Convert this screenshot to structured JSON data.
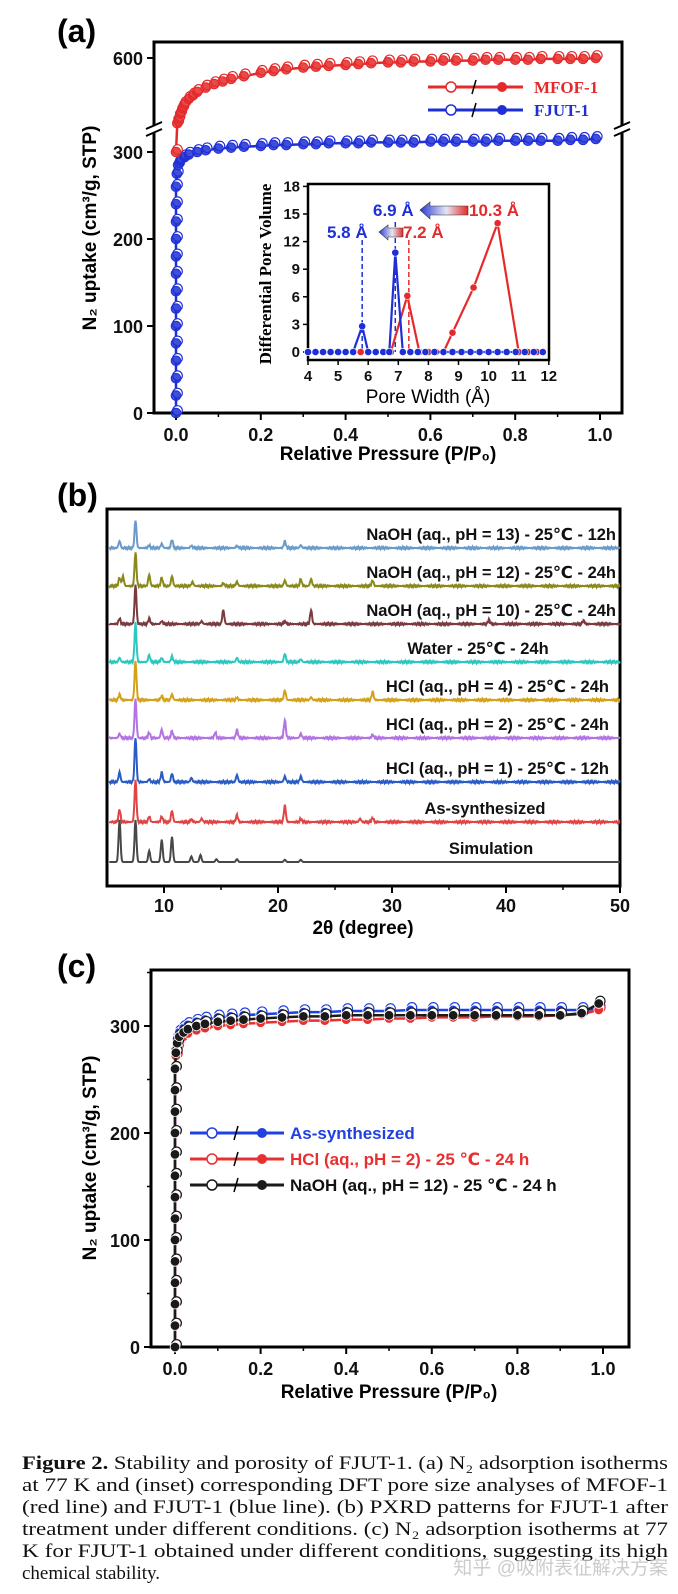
{
  "panel_labels": {
    "a": "(a)",
    "b": "(b)",
    "c": "(c)"
  },
  "chart_data": [
    {
      "id": "a-isotherm",
      "type": "scatter",
      "xlabel": "Relative Pressure (P/P₀)",
      "ylabel": "N₂ uptake (cm³/g, STP)",
      "xlim": [
        0,
        1
      ],
      "xticks": [
        "0.0",
        "0.2",
        "0.4",
        "0.6",
        "0.8",
        "1.0"
      ],
      "yticks": [
        "0",
        "100",
        "200",
        "300",
        "600"
      ],
      "axis_break": [
        320,
        520
      ],
      "legend_position": "top-right",
      "series": [
        {
          "name": "MFOF-1",
          "color": "#e42a2a",
          "x": [
            0,
            0.003,
            0.006,
            0.01,
            0.015,
            0.02,
            0.03,
            0.04,
            0.05,
            0.07,
            0.09,
            0.11,
            0.13,
            0.16,
            0.2,
            0.23,
            0.26,
            0.3,
            0.33,
            0.36,
            0.4,
            0.43,
            0.46,
            0.5,
            0.53,
            0.56,
            0.6,
            0.63,
            0.66,
            0.7,
            0.73,
            0.76,
            0.8,
            0.83,
            0.86,
            0.9,
            0.93,
            0.96,
            0.99
          ],
          "y": [
            300,
            525,
            530,
            536,
            542,
            547,
            553,
            557,
            561,
            566,
            570,
            573,
            576,
            579,
            583,
            585,
            587,
            589,
            590,
            591,
            592,
            593,
            594,
            595,
            595,
            596,
            596,
            597,
            597,
            597,
            598,
            598,
            598,
            598,
            599,
            599,
            599,
            599,
            600
          ]
        },
        {
          "name": "FJUT-1",
          "color": "#1f2fd6",
          "x": [
            0,
            0,
            0,
            0,
            0,
            0,
            0,
            0,
            0,
            0,
            0,
            0,
            0,
            0,
            0.002,
            0.005,
            0.01,
            0.02,
            0.03,
            0.05,
            0.07,
            0.1,
            0.13,
            0.16,
            0.2,
            0.23,
            0.26,
            0.3,
            0.33,
            0.36,
            0.4,
            0.43,
            0.46,
            0.5,
            0.53,
            0.56,
            0.6,
            0.63,
            0.66,
            0.7,
            0.73,
            0.76,
            0.8,
            0.83,
            0.86,
            0.9,
            0.93,
            0.96,
            0.99
          ],
          "y": [
            0,
            20,
            40,
            60,
            80,
            100,
            120,
            140,
            160,
            180,
            200,
            220,
            240,
            260,
            275,
            285,
            290,
            294,
            297,
            300,
            302,
            304,
            305,
            306,
            307,
            308,
            308,
            309,
            309,
            310,
            310,
            310,
            311,
            311,
            311,
            311,
            312,
            312,
            312,
            312,
            312,
            313,
            313,
            313,
            313,
            313,
            314,
            314,
            315
          ]
        }
      ]
    },
    {
      "id": "a-inset-psd",
      "type": "line",
      "xlabel": "Pore Width (Å)",
      "ylabel": "Differential Pore Volume",
      "xlim": [
        4,
        12
      ],
      "ylim": [
        0,
        18
      ],
      "xticks": [
        "4",
        "5",
        "6",
        "7",
        "8",
        "9",
        "10",
        "11",
        "12"
      ],
      "yticks": [
        "0",
        "3",
        "6",
        "9",
        "12",
        "15",
        "18"
      ],
      "annotations": [
        {
          "text": "6.9 Å",
          "color": "#1f2fd6"
        },
        {
          "text": "10.3 Å",
          "color": "#e42a2a"
        },
        {
          "text": "5.8 Å",
          "color": "#1f2fd6"
        },
        {
          "text": "7.2 Å",
          "color": "#e42a2a"
        }
      ],
      "series": [
        {
          "color": "#e42a2a",
          "x": [
            4,
            4.25,
            4.5,
            4.75,
            5,
            5.25,
            5.5,
            5.75,
            6,
            6.25,
            6.5,
            6.75,
            7.3,
            7.7,
            8,
            8.25,
            8.5,
            8.8,
            9.5,
            10.3,
            11,
            11.3,
            11.6
          ],
          "y": [
            0,
            0,
            0,
            0,
            0,
            0,
            0,
            0,
            0,
            0,
            0,
            0,
            6.1,
            0,
            0,
            0,
            0,
            2.1,
            7,
            14,
            0,
            0,
            0
          ]
        },
        {
          "color": "#1f2fd6",
          "x": [
            4,
            4.25,
            4.5,
            4.75,
            5,
            5.25,
            5.5,
            5.8,
            6.0,
            6.25,
            6.5,
            6.7,
            6.9,
            7.15,
            7.4,
            7.65,
            7.9,
            8.2,
            8.5,
            8.8,
            9.1,
            9.4,
            9.7,
            10,
            10.3,
            10.6,
            10.9,
            11.2,
            11.5,
            11.8
          ],
          "y": [
            0,
            0,
            0,
            0,
            0,
            0,
            0,
            2.8,
            0,
            0,
            0,
            0,
            10.8,
            0,
            0,
            0,
            0,
            0,
            0,
            0,
            0,
            0,
            0,
            0,
            0,
            0,
            0,
            0,
            0,
            0
          ]
        }
      ]
    },
    {
      "id": "b-pxrd",
      "type": "line",
      "xlabel": "2θ (degree)",
      "xlim": [
        5,
        50
      ],
      "xticks": [
        "10",
        "20",
        "30",
        "40",
        "50"
      ],
      "series": [
        {
          "name": "NaOH (aq., pH = 13) - 25℃ - 12h",
          "color": "#6a9bc9",
          "peaks": [
            [
              6.1,
              0.25
            ],
            [
              7.5,
              1
            ],
            [
              8.7,
              0.1
            ],
            [
              9.8,
              0.15
            ],
            [
              10.7,
              0.3
            ],
            [
              12.4,
              0.08
            ],
            [
              16.4,
              0.08
            ],
            [
              20.6,
              0.25
            ],
            [
              22,
              0.1
            ]
          ]
        },
        {
          "name": "NaOH (aq., pH = 12) - 25℃ - 24h",
          "color": "#8a8a1c",
          "peaks": [
            [
              6.1,
              0.3
            ],
            [
              6.4,
              0.35
            ],
            [
              7.5,
              1.2
            ],
            [
              8.7,
              0.4
            ],
            [
              9.8,
              0.3
            ],
            [
              10.7,
              0.35
            ],
            [
              12.5,
              0.15
            ],
            [
              15.2,
              0.1
            ],
            [
              16.4,
              0.15
            ],
            [
              20.6,
              0.2
            ],
            [
              22,
              0.25
            ],
            [
              22.9,
              0.25
            ],
            [
              28.3,
              0.2
            ]
          ]
        },
        {
          "name": "NaOH (aq., pH = 10) - 25℃ - 24h",
          "color": "#7a3a3e",
          "peaks": [
            [
              6.1,
              0.2
            ],
            [
              7.5,
              1.4
            ],
            [
              8.7,
              0.2
            ],
            [
              9.8,
              0.1
            ],
            [
              13.3,
              0.1
            ],
            [
              15.2,
              0.5
            ],
            [
              20.6,
              0.1
            ],
            [
              22.9,
              0.5
            ],
            [
              38.5,
              0.15
            ],
            [
              46.8,
              0.12
            ]
          ]
        },
        {
          "name": "Water - 25℃ - 24h",
          "color": "#2ec7c0",
          "peaks": [
            [
              6.1,
              0.15
            ],
            [
              7.5,
              1.4
            ],
            [
              8.7,
              0.25
            ],
            [
              9.8,
              0.15
            ],
            [
              10.7,
              0.2
            ],
            [
              16.4,
              0.15
            ],
            [
              20.6,
              0.3
            ],
            [
              22,
              0.1
            ]
          ]
        },
        {
          "name": "HCl (aq., pH = 4) - 25℃ - 24h",
          "color": "#d4a21a",
          "peaks": [
            [
              6.1,
              0.2
            ],
            [
              7.5,
              1.4
            ],
            [
              9.8,
              0.15
            ],
            [
              10.7,
              0.2
            ],
            [
              16.4,
              0.08
            ],
            [
              20.6,
              0.35
            ],
            [
              22.9,
              0.1
            ],
            [
              28.3,
              0.3
            ]
          ]
        },
        {
          "name": "HCl (aq., pH = 2) - 25℃ - 24h",
          "color": "#b374e2",
          "peaks": [
            [
              6.1,
              0.15
            ],
            [
              7.5,
              1.4
            ],
            [
              8.7,
              0.2
            ],
            [
              9.8,
              0.3
            ],
            [
              10.7,
              0.25
            ],
            [
              14.5,
              0.2
            ],
            [
              16.4,
              0.3
            ],
            [
              20.6,
              0.65
            ],
            [
              22,
              0.15
            ],
            [
              28.3,
              0.12
            ]
          ]
        },
        {
          "name": "HCl (aq., pH = 1) - 25℃ - 12h",
          "color": "#2a5cc6",
          "peaks": [
            [
              6.1,
              0.35
            ],
            [
              7.5,
              1.6
            ],
            [
              8.7,
              0.1
            ],
            [
              9.8,
              0.35
            ],
            [
              10.7,
              0.3
            ],
            [
              12.4,
              0.15
            ],
            [
              16.4,
              0.25
            ],
            [
              20.6,
              0.2
            ],
            [
              22,
              0.2
            ]
          ]
        },
        {
          "name": "As-synthesized",
          "color": "#e04545",
          "peaks": [
            [
              6.1,
              0.45
            ],
            [
              7.5,
              1.5
            ],
            [
              8.7,
              0.2
            ],
            [
              9.8,
              0.2
            ],
            [
              10.7,
              0.4
            ],
            [
              12.4,
              0.1
            ],
            [
              13.3,
              0.12
            ],
            [
              16.4,
              0.25
            ],
            [
              20.6,
              0.6
            ],
            [
              22,
              0.12
            ],
            [
              27.2,
              0.12
            ],
            [
              28.3,
              0.15
            ]
          ]
        },
        {
          "name": "Simulation",
          "color": "#484848",
          "peaks": [
            [
              6.1,
              1.5
            ],
            [
              7.5,
              1.5
            ],
            [
              8.7,
              0.4
            ],
            [
              9.8,
              0.8
            ],
            [
              10.7,
              0.9
            ],
            [
              12.4,
              0.2
            ],
            [
              13.2,
              0.25
            ],
            [
              14.6,
              0.1
            ],
            [
              16.4,
              0.1
            ],
            [
              20.6,
              0.08
            ],
            [
              22,
              0.08
            ]
          ]
        }
      ]
    },
    {
      "id": "c-isotherm",
      "type": "scatter",
      "xlabel": "Relative Pressure (P/P₀)",
      "ylabel": "N₂ uptake (cm³/g, STP)",
      "xlim": [
        0,
        1
      ],
      "ylim": [
        0,
        350
      ],
      "xticks": [
        "0.0",
        "0.2",
        "0.4",
        "0.6",
        "0.8",
        "1.0"
      ],
      "yticks": [
        "0",
        "100",
        "200",
        "300"
      ],
      "legend_position": "center-left",
      "series": [
        {
          "name": "As-synthesized",
          "color": "#2040e0",
          "x": [
            0,
            0,
            0,
            0,
            0,
            0,
            0,
            0,
            0,
            0,
            0,
            0,
            0,
            0,
            0.002,
            0.005,
            0.01,
            0.02,
            0.03,
            0.05,
            0.07,
            0.1,
            0.13,
            0.16,
            0.2,
            0.25,
            0.3,
            0.35,
            0.4,
            0.45,
            0.5,
            0.55,
            0.6,
            0.65,
            0.7,
            0.75,
            0.8,
            0.85,
            0.9,
            0.95,
            0.99
          ],
          "y": [
            0,
            20,
            40,
            60,
            80,
            100,
            120,
            140,
            160,
            180,
            200,
            220,
            240,
            260,
            278,
            288,
            294,
            298,
            301,
            304,
            306,
            308,
            309,
            310,
            311,
            312,
            313,
            313,
            314,
            314,
            314,
            315,
            315,
            315,
            315,
            315,
            315,
            315,
            315,
            315,
            316
          ]
        },
        {
          "name": "HCl (aq., pH = 2) - 25 ℃ - 24 h",
          "color": "#e83030",
          "x": [
            0,
            0,
            0,
            0,
            0,
            0,
            0,
            0,
            0,
            0,
            0,
            0,
            0,
            0,
            0.002,
            0.005,
            0.01,
            0.02,
            0.03,
            0.05,
            0.07,
            0.1,
            0.13,
            0.16,
            0.2,
            0.25,
            0.3,
            0.35,
            0.4,
            0.45,
            0.5,
            0.55,
            0.6,
            0.65,
            0.7,
            0.75,
            0.8,
            0.85,
            0.9,
            0.95,
            0.99
          ],
          "y": [
            0,
            20,
            40,
            60,
            80,
            100,
            120,
            140,
            160,
            180,
            200,
            220,
            240,
            260,
            272,
            280,
            286,
            290,
            293,
            296,
            298,
            300,
            301,
            302,
            303,
            304,
            305,
            305,
            306,
            306,
            307,
            307,
            308,
            308,
            308,
            309,
            309,
            309,
            310,
            311,
            315
          ]
        },
        {
          "name": "NaOH (aq., pH = 12) - 25 ℃ - 24 h",
          "color": "#1a1a1a",
          "x": [
            0,
            0,
            0,
            0,
            0,
            0,
            0,
            0,
            0,
            0,
            0,
            0,
            0,
            0,
            0.002,
            0.005,
            0.01,
            0.02,
            0.03,
            0.05,
            0.07,
            0.1,
            0.13,
            0.16,
            0.2,
            0.25,
            0.3,
            0.35,
            0.4,
            0.45,
            0.5,
            0.55,
            0.6,
            0.65,
            0.7,
            0.75,
            0.8,
            0.85,
            0.9,
            0.95,
            0.99
          ],
          "y": [
            0,
            20,
            40,
            60,
            80,
            100,
            120,
            140,
            160,
            180,
            200,
            220,
            240,
            260,
            275,
            284,
            290,
            294,
            297,
            300,
            302,
            304,
            305,
            306,
            307,
            308,
            309,
            309,
            310,
            310,
            310,
            310,
            310,
            310,
            310,
            310,
            310,
            310,
            310,
            312,
            321
          ]
        }
      ]
    }
  ],
  "caption": {
    "bold": "Figure 2.",
    "lines": [
      " Stability and porosity of FJUT-1. (a) N₂ adsorption isotherms",
      "at 77 K and (inset) corresponding DFT pore size analyses of MFOF-1",
      "(red line) and FJUT-1 (blue line). (b) PXRD patterns for FJUT-1 after",
      "treatment under different conditions. (c) N₂ adsorption isotherms at 77",
      "K for FJUT-1 obtained under different conditions, suggesting its high",
      "chemical stability."
    ]
  },
  "watermark": "知乎 @吸附表征解决方案"
}
